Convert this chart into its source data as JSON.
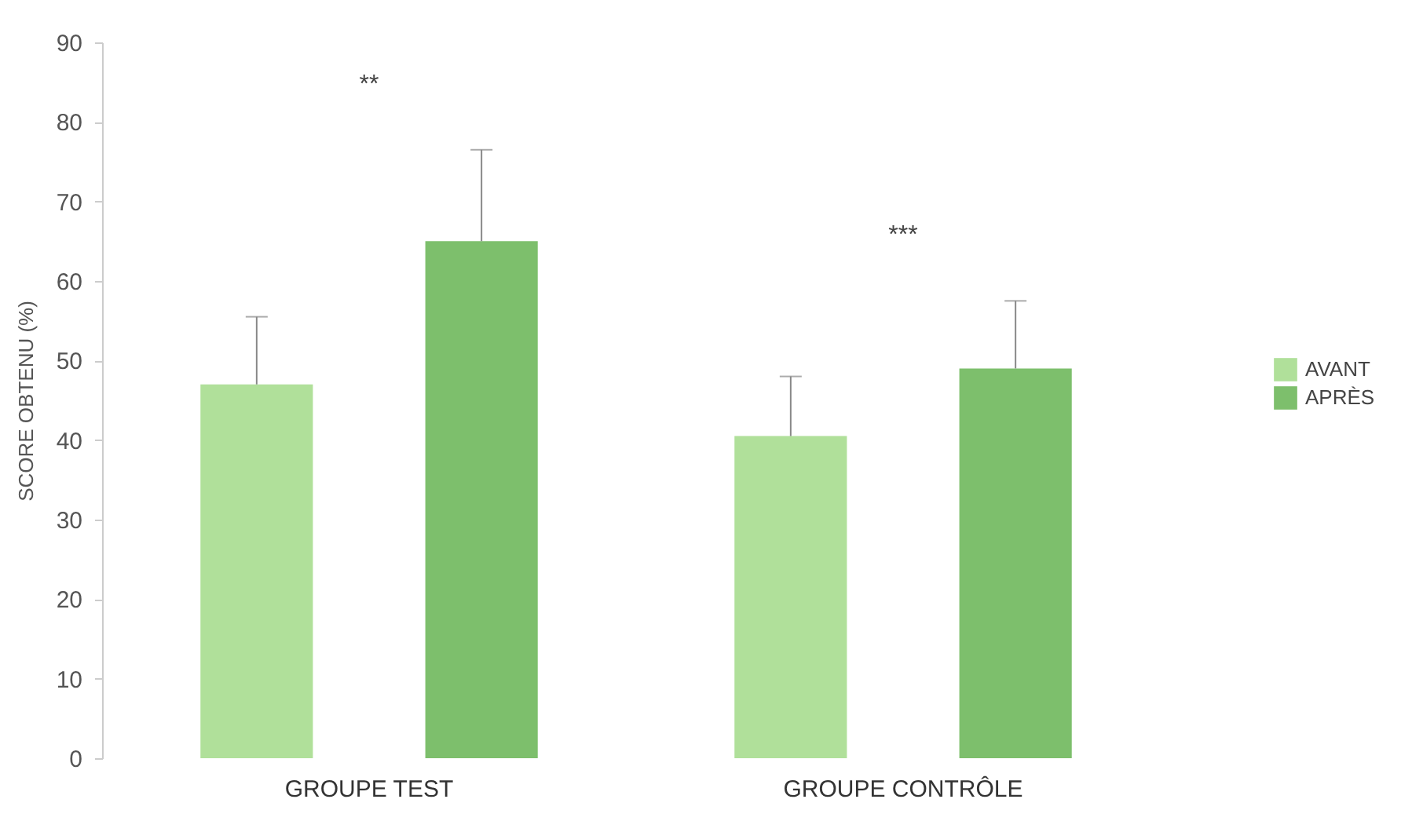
{
  "chart_data": {
    "type": "bar",
    "ylabel": "SCORE OBTENU (%)",
    "categories": [
      "GROUPE TEST",
      "GROUPE CONTRÔLE"
    ],
    "series": [
      {
        "name": "AVANT",
        "color": "#b0e09a",
        "values": [
          47,
          40.5
        ],
        "errors": [
          [
            47,
            55.5
          ],
          [
            40.5,
            48
          ]
        ]
      },
      {
        "name": "APRÈS",
        "color": "#7dbf6c",
        "values": [
          65,
          49
        ],
        "errors": [
          [
            65,
            76.5
          ],
          [
            49,
            57.5
          ]
        ]
      }
    ],
    "ylim": [
      0,
      90
    ],
    "yticks": [
      0,
      10,
      20,
      30,
      40,
      50,
      60,
      70,
      80,
      90
    ],
    "legend": "right",
    "annotations": [
      "**",
      "***"
    ]
  }
}
